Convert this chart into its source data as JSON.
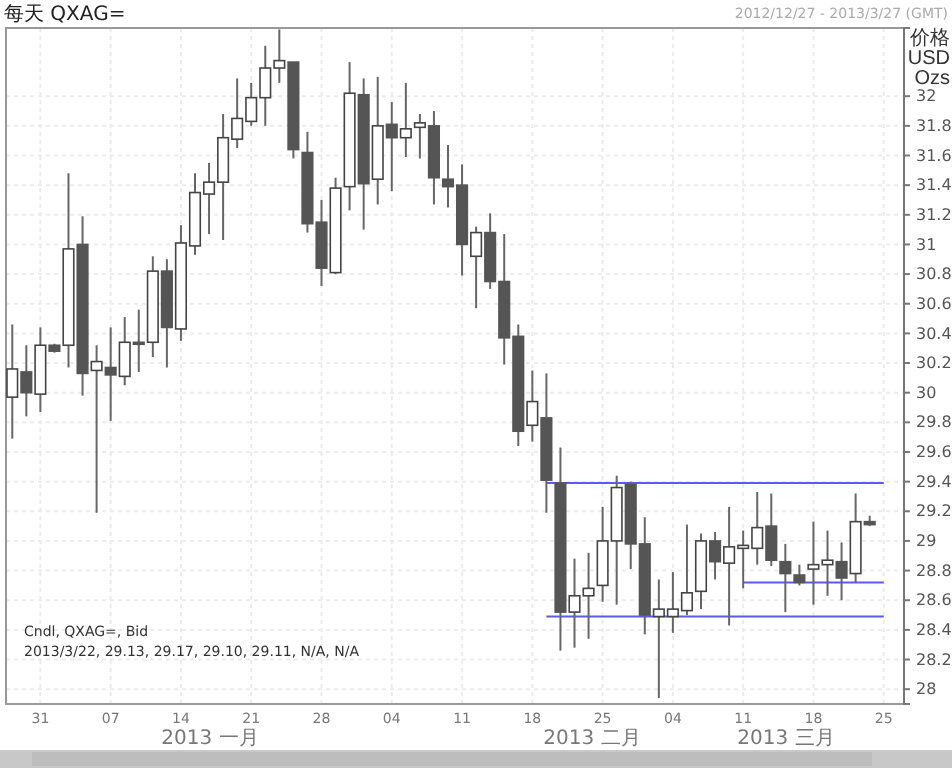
{
  "chart_data": {
    "type": "candlestick",
    "title": "每天 QXAG=",
    "subtitle": "Cndl, QXAG=, Bid",
    "ylabel": "价格 USD Ozs",
    "annotations": [
      "2012/12/27 - 2013/3/27 (GMT)",
      "2013/3/22, 29.13, 29.17, 29.10, 29.11, N/A, N/A",
      "2013 一月",
      "2013 二月",
      "2013 三月"
    ],
    "categories": [
      null,
      null,
      "31",
      null,
      null,
      null,
      null,
      "07",
      null,
      null,
      null,
      null,
      "14",
      null,
      null,
      null,
      null,
      "21",
      null,
      null,
      null,
      null,
      "28",
      null,
      null,
      null,
      null,
      "04",
      null,
      null,
      null,
      null,
      "11",
      null,
      null,
      null,
      null,
      "18",
      null,
      null,
      null,
      null,
      "25",
      null,
      null,
      null,
      null,
      "04",
      null,
      null,
      null,
      null,
      "11",
      null,
      null,
      null,
      null,
      "18",
      null,
      null,
      null,
      null,
      "25"
    ],
    "ohlc": [
      [
        29.97,
        30.46,
        29.69,
        30.16
      ],
      [
        30.14,
        30.32,
        29.84,
        30.0
      ],
      [
        29.99,
        30.44,
        29.87,
        30.32
      ],
      [
        30.32,
        30.33,
        30.27,
        30.28
      ],
      [
        30.32,
        31.48,
        30.17,
        30.97
      ],
      [
        31.0,
        31.19,
        29.98,
        30.13
      ],
      [
        30.15,
        30.32,
        29.19,
        30.21
      ],
      [
        30.17,
        30.44,
        29.81,
        30.12
      ],
      [
        30.11,
        30.51,
        30.05,
        30.34
      ],
      [
        30.34,
        30.56,
        30.14,
        30.33
      ],
      [
        30.34,
        30.92,
        30.24,
        30.82
      ],
      [
        30.82,
        30.9,
        30.17,
        30.44
      ],
      [
        30.43,
        31.13,
        30.35,
        31.01
      ],
      [
        30.99,
        31.48,
        30.93,
        31.35
      ],
      [
        31.34,
        31.55,
        31.07,
        31.42
      ],
      [
        31.42,
        31.88,
        31.03,
        31.72
      ],
      [
        31.71,
        32.12,
        31.65,
        31.85
      ],
      [
        31.83,
        32.09,
        31.8,
        31.99
      ],
      [
        31.99,
        32.34,
        31.8,
        32.19
      ],
      [
        32.19,
        32.45,
        32.09,
        32.24
      ],
      [
        32.23,
        32.23,
        31.58,
        31.64
      ],
      [
        31.62,
        31.76,
        31.08,
        31.14
      ],
      [
        31.15,
        31.3,
        30.72,
        30.84
      ],
      [
        30.81,
        31.45,
        30.8,
        31.38
      ],
      [
        31.39,
        32.23,
        31.23,
        32.02
      ],
      [
        32.01,
        32.12,
        31.1,
        31.41
      ],
      [
        31.44,
        32.13,
        31.27,
        31.8
      ],
      [
        31.81,
        31.96,
        31.36,
        31.72
      ],
      [
        31.72,
        32.09,
        31.59,
        31.78
      ],
      [
        31.79,
        31.88,
        31.58,
        31.82
      ],
      [
        31.8,
        31.9,
        31.27,
        31.45
      ],
      [
        31.44,
        31.67,
        31.25,
        31.39
      ],
      [
        31.4,
        31.54,
        30.79,
        31.0
      ],
      [
        30.92,
        31.12,
        30.57,
        31.08
      ],
      [
        31.08,
        31.21,
        30.7,
        30.75
      ],
      [
        30.75,
        31.07,
        30.19,
        30.37
      ],
      [
        30.38,
        30.46,
        29.64,
        29.74
      ],
      [
        29.78,
        30.15,
        29.67,
        29.94
      ],
      [
        29.83,
        30.13,
        29.19,
        29.41
      ],
      [
        29.39,
        29.63,
        28.26,
        28.52
      ],
      [
        28.52,
        28.88,
        28.28,
        28.63
      ],
      [
        28.63,
        28.92,
        28.34,
        28.68
      ],
      [
        28.7,
        29.23,
        28.59,
        29.0
      ],
      [
        29.0,
        29.44,
        28.57,
        29.36
      ],
      [
        29.38,
        29.4,
        28.81,
        28.98
      ],
      [
        28.98,
        29.16,
        28.37,
        28.5
      ],
      [
        28.49,
        28.74,
        27.94,
        28.54
      ],
      [
        28.49,
        28.79,
        28.38,
        28.54
      ],
      [
        28.53,
        29.11,
        28.5,
        28.65
      ],
      [
        28.66,
        29.05,
        28.54,
        29.0
      ],
      [
        29.0,
        29.06,
        28.74,
        28.86
      ],
      [
        28.85,
        29.23,
        28.43,
        28.96
      ],
      [
        28.95,
        29.07,
        28.68,
        28.97
      ],
      [
        28.95,
        29.33,
        28.84,
        29.09
      ],
      [
        29.1,
        29.32,
        28.83,
        28.87
      ],
      [
        28.86,
        28.98,
        28.52,
        28.78
      ],
      [
        28.77,
        28.84,
        28.7,
        28.72
      ],
      [
        28.81,
        29.13,
        28.57,
        28.84
      ],
      [
        28.84,
        29.07,
        28.63,
        28.87
      ],
      [
        28.86,
        28.99,
        28.6,
        28.75
      ],
      [
        28.78,
        29.32,
        28.72,
        29.13
      ],
      [
        29.13,
        29.17,
        29.1,
        29.11
      ],
      null
    ],
    "series": [
      {
        "type": "line",
        "color": "#5a5af0",
        "values": [
          null,
          null,
          null,
          null,
          null,
          null,
          null,
          null,
          null,
          null,
          null,
          null,
          null,
          null,
          null,
          null,
          null,
          null,
          null,
          null,
          null,
          null,
          null,
          null,
          null,
          null,
          null,
          null,
          null,
          null,
          null,
          null,
          null,
          null,
          null,
          null,
          null,
          null,
          29.39,
          29.39,
          29.39,
          29.39,
          29.39,
          29.39,
          29.39,
          29.39,
          29.39,
          29.39,
          29.39,
          29.39,
          29.39,
          29.39,
          29.39,
          29.39,
          29.39,
          29.39,
          29.39,
          29.39,
          29.39,
          29.39,
          29.39,
          29.39,
          29.39
        ]
      },
      {
        "type": "line",
        "color": "#5a5af0",
        "values": [
          null,
          null,
          null,
          null,
          null,
          null,
          null,
          null,
          null,
          null,
          null,
          null,
          null,
          null,
          null,
          null,
          null,
          null,
          null,
          null,
          null,
          null,
          null,
          null,
          null,
          null,
          null,
          null,
          null,
          null,
          null,
          null,
          null,
          null,
          null,
          null,
          null,
          null,
          28.49,
          28.49,
          28.49,
          28.49,
          28.49,
          28.49,
          28.49,
          28.49,
          28.49,
          28.49,
          28.49,
          28.49,
          28.49,
          28.49,
          28.49,
          28.49,
          28.49,
          28.49,
          28.49,
          28.49,
          28.49,
          28.49,
          28.49,
          28.49,
          28.49
        ]
      },
      {
        "type": "line",
        "color": "#5a5af0",
        "values": [
          null,
          null,
          null,
          null,
          null,
          null,
          null,
          null,
          null,
          null,
          null,
          null,
          null,
          null,
          null,
          null,
          null,
          null,
          null,
          null,
          null,
          null,
          null,
          null,
          null,
          null,
          null,
          null,
          null,
          null,
          null,
          null,
          null,
          null,
          null,
          null,
          null,
          null,
          null,
          null,
          null,
          null,
          null,
          null,
          null,
          null,
          null,
          null,
          null,
          null,
          null,
          null,
          28.72,
          28.72,
          28.72,
          28.72,
          28.72,
          28.72,
          28.72,
          28.72,
          28.72,
          28.72,
          28.72
        ]
      }
    ],
    "ylim": [
      27.9,
      32.46
    ],
    "yticks": [
      {
        "value": 28,
        "label": "28"
      },
      28.2,
      28.4,
      28.6,
      28.8,
      {
        "value": 29,
        "label": "29"
      },
      29.2,
      29.4,
      29.6,
      29.8,
      {
        "value": 30,
        "label": "30"
      },
      30.2,
      30.4,
      30.6,
      30.8,
      {
        "value": 31,
        "label": "31"
      },
      31.2,
      31.4,
      31.6,
      31.8,
      {
        "value": 32,
        "label": "32"
      }
    ],
    "grid": true
  }
}
